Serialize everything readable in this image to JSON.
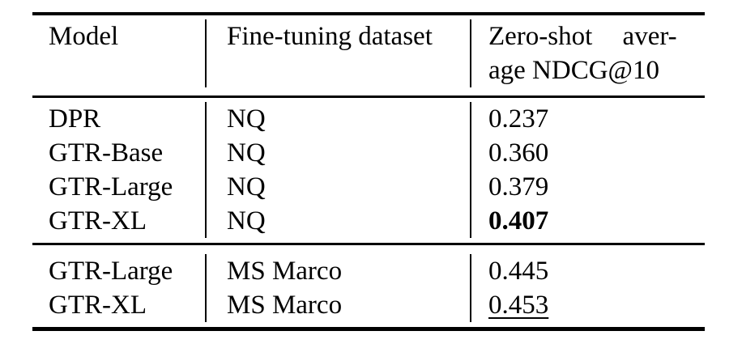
{
  "table": {
    "header": {
      "model": "Model",
      "dataset": "Fine-tuning dataset",
      "metric_line1": "Zero-shot aver-",
      "metric_line2": "age NDCG@10"
    },
    "sections": [
      {
        "rows": [
          {
            "model": "DPR",
            "dataset": "NQ",
            "score": "0.237",
            "score_style": "normal"
          },
          {
            "model": "GTR-Base",
            "dataset": "NQ",
            "score": "0.360",
            "score_style": "normal"
          },
          {
            "model": "GTR-Large",
            "dataset": "NQ",
            "score": "0.379",
            "score_style": "normal"
          },
          {
            "model": "GTR-XL",
            "dataset": "NQ",
            "score": "0.407",
            "score_style": "bold"
          }
        ]
      },
      {
        "rows": [
          {
            "model": "GTR-Large",
            "dataset": "MS Marco",
            "score": "0.445",
            "score_style": "normal"
          },
          {
            "model": "GTR-XL",
            "dataset": "MS Marco",
            "score": "0.453",
            "score_style": "underline"
          }
        ]
      }
    ],
    "colors": {
      "background": "#ffffff",
      "rule": "#000000",
      "text": "#000000"
    }
  }
}
